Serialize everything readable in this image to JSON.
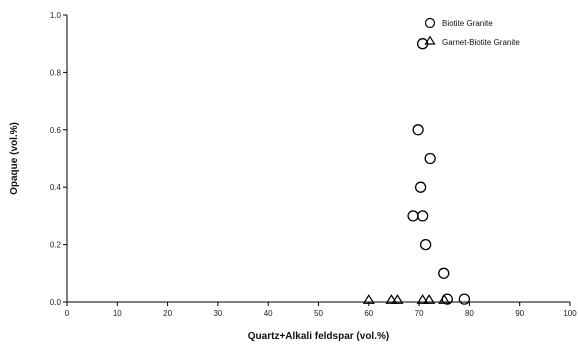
{
  "chart_data": {
    "type": "scatter",
    "xlabel": "Quartz+Alkali feldspar (vol.%)",
    "ylabel": "Opaque (vol.%)",
    "xlim": [
      0,
      100
    ],
    "ylim": [
      0,
      1.0
    ],
    "x_ticks": [
      "0",
      "10",
      "20",
      "30",
      "40",
      "50",
      "60",
      "70",
      "80",
      "90",
      "100"
    ],
    "y_ticks": [
      "0.0",
      "0.2",
      "0.4",
      "0.6",
      "0.8",
      "1.0"
    ],
    "grid": false,
    "legend_position": "top-right",
    "series": [
      {
        "name": "Biotite Granite",
        "marker": "circle",
        "points": [
          {
            "x": 70.7,
            "y": 0.9
          },
          {
            "x": 69.8,
            "y": 0.6
          },
          {
            "x": 72.2,
            "y": 0.5
          },
          {
            "x": 70.3,
            "y": 0.4
          },
          {
            "x": 68.8,
            "y": 0.3
          },
          {
            "x": 70.7,
            "y": 0.3
          },
          {
            "x": 71.3,
            "y": 0.2
          },
          {
            "x": 74.9,
            "y": 0.1
          },
          {
            "x": 75.6,
            "y": 0.01
          },
          {
            "x": 79.0,
            "y": 0.01
          }
        ]
      },
      {
        "name": "Garnet-Biotite Granite",
        "marker": "triangle",
        "points": [
          {
            "x": 60.0,
            "y": 0.0
          },
          {
            "x": 64.5,
            "y": 0.0
          },
          {
            "x": 65.7,
            "y": 0.0
          },
          {
            "x": 70.7,
            "y": 0.0
          },
          {
            "x": 72.0,
            "y": 0.0
          },
          {
            "x": 75.0,
            "y": 0.0
          }
        ]
      }
    ]
  }
}
